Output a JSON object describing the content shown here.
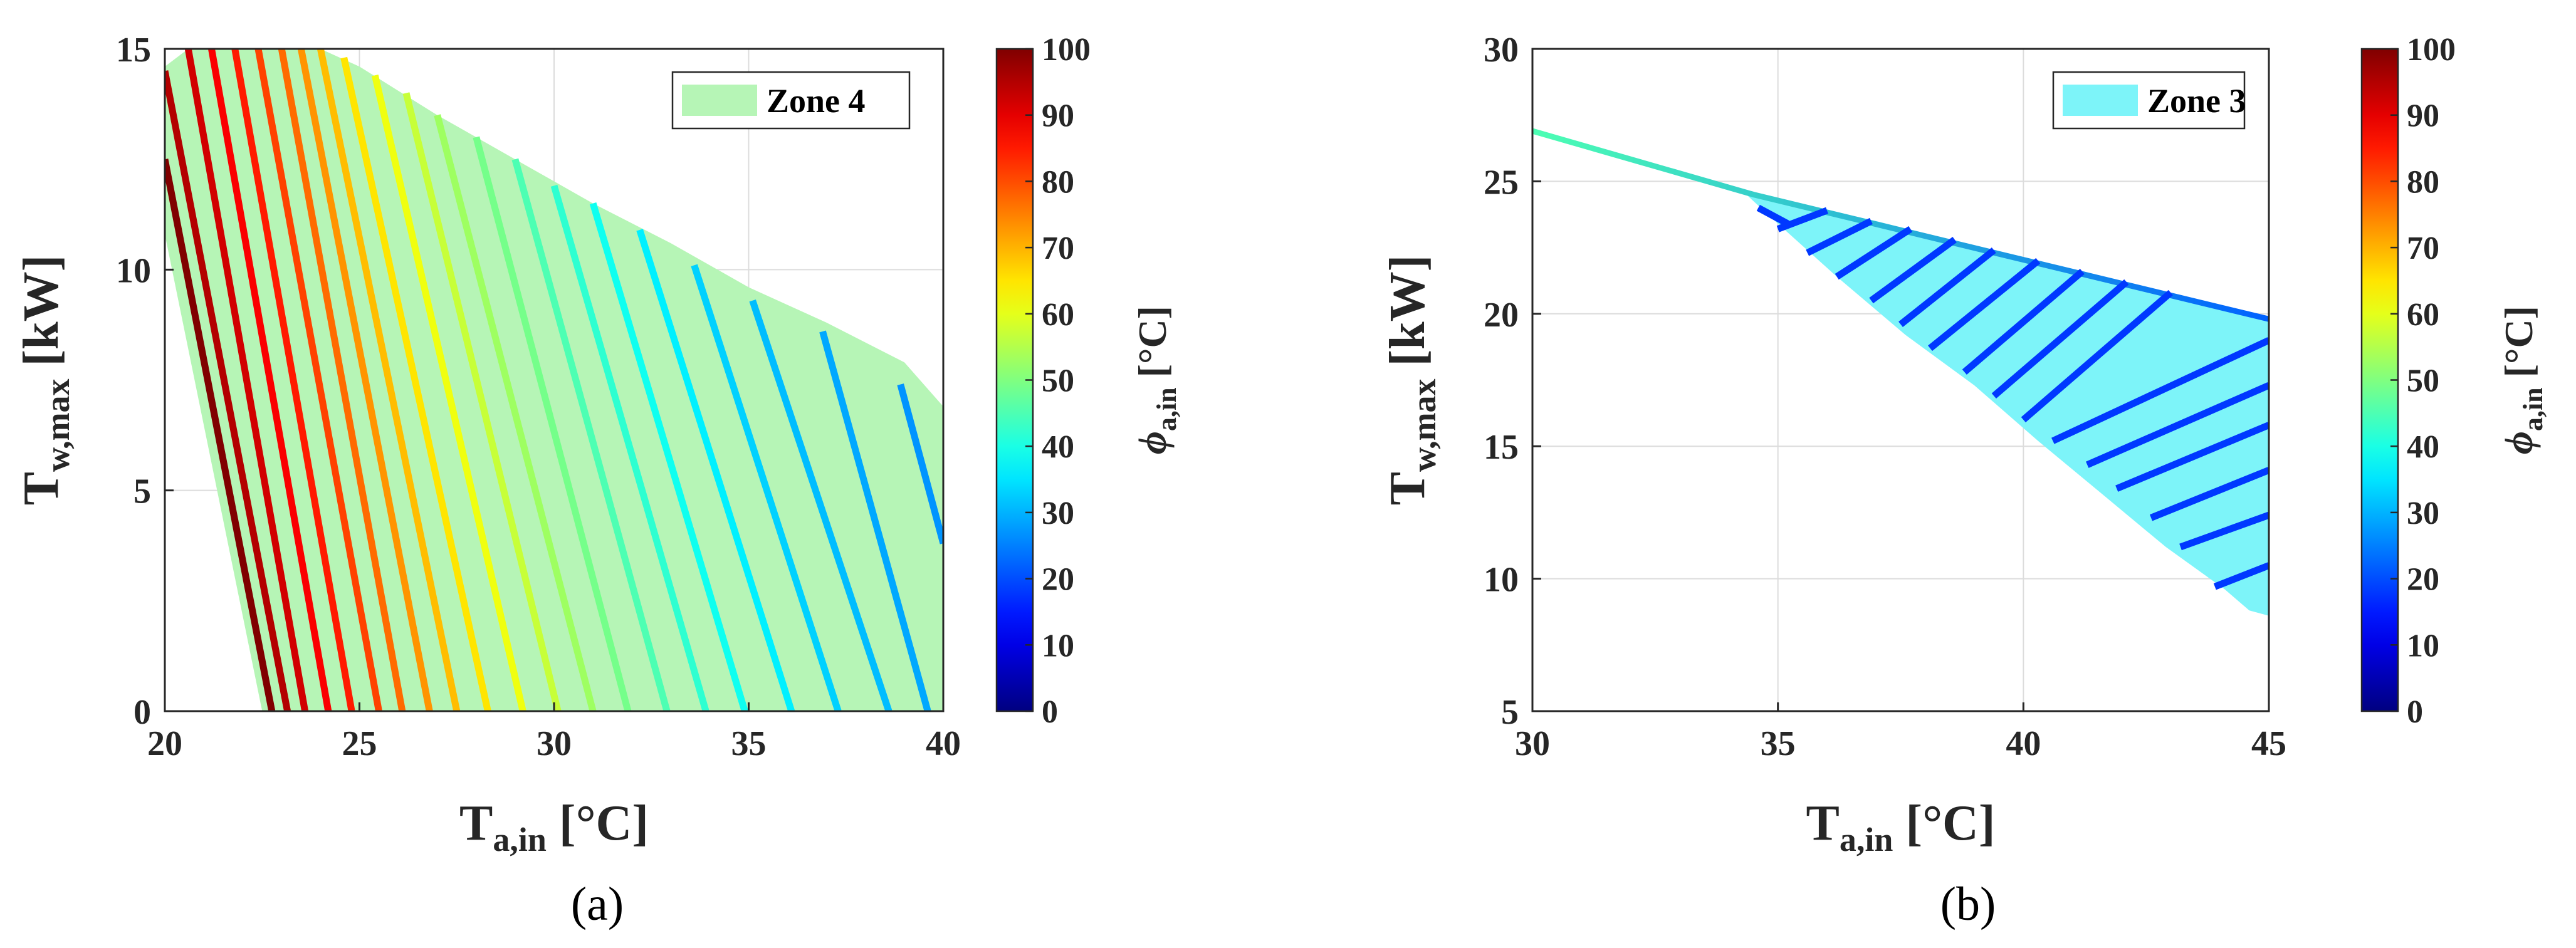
{
  "chart_data": [
    {
      "panel_label": "(a)",
      "type": "area",
      "xlabel": {
        "main": "T",
        "sub": "a,in",
        "unit": " [°C]"
      },
      "ylabel": {
        "main": "T",
        "sub": "w,max",
        "unit": " [kW]"
      },
      "xlim": [
        20,
        40
      ],
      "ylim": [
        0,
        15
      ],
      "xticks": [
        "20",
        "25",
        "30",
        "35",
        "40"
      ],
      "yticks": [
        "0",
        "5",
        "10",
        "15"
      ],
      "grid": true,
      "legend": {
        "label": "Zone 4",
        "position": "top-right",
        "color": "#b6f5b6"
      },
      "zone": {
        "color": "#b6f5b6",
        "polygon": [
          [
            20.0,
            14.6
          ],
          [
            20.6,
            15.0
          ],
          [
            24.0,
            15.0
          ],
          [
            25.0,
            14.6
          ],
          [
            27.0,
            13.5
          ],
          [
            29.0,
            12.5
          ],
          [
            31.0,
            11.5
          ],
          [
            33.0,
            10.6
          ],
          [
            35.0,
            9.6
          ],
          [
            37.0,
            8.8
          ],
          [
            39.0,
            7.9
          ],
          [
            40.0,
            6.9
          ],
          [
            40.0,
            0.0
          ],
          [
            22.5,
            0.0
          ],
          [
            20.0,
            10.8
          ]
        ]
      },
      "colorbar": {
        "label_symbol": "ϕ",
        "label_sub": "a,in",
        "label_unit": " [°C]",
        "ticks": [
          "0",
          "10",
          "20",
          "30",
          "40",
          "50",
          "60",
          "70",
          "80",
          "90",
          "100"
        ],
        "range": [
          0,
          100
        ],
        "colormap": "jet"
      },
      "series": [
        {
          "phi": 100,
          "x": [
            20.0,
            22.75
          ],
          "y": [
            12.5,
            0.0
          ]
        },
        {
          "phi": 95,
          "x": [
            20.0,
            23.15
          ],
          "y": [
            14.5,
            0.0
          ]
        },
        {
          "phi": 92,
          "x": [
            20.6,
            23.6
          ],
          "y": [
            15.0,
            0.0
          ]
        },
        {
          "phi": 88,
          "x": [
            21.2,
            24.2
          ],
          "y": [
            15.0,
            0.0
          ]
        },
        {
          "phi": 85,
          "x": [
            21.8,
            24.8
          ],
          "y": [
            15.0,
            0.0
          ]
        },
        {
          "phi": 81,
          "x": [
            22.4,
            25.5
          ],
          "y": [
            15.0,
            0.0
          ]
        },
        {
          "phi": 77,
          "x": [
            23.0,
            26.1
          ],
          "y": [
            15.0,
            0.0
          ]
        },
        {
          "phi": 73,
          "x": [
            23.5,
            26.8
          ],
          "y": [
            15.0,
            0.0
          ]
        },
        {
          "phi": 69,
          "x": [
            24.0,
            27.5
          ],
          "y": [
            15.0,
            0.0
          ]
        },
        {
          "phi": 65,
          "x": [
            24.6,
            28.3
          ],
          "y": [
            14.8,
            0.0
          ]
        },
        {
          "phi": 61,
          "x": [
            25.4,
            29.2
          ],
          "y": [
            14.4,
            0.0
          ]
        },
        {
          "phi": 57,
          "x": [
            26.2,
            30.1
          ],
          "y": [
            14.0,
            0.0
          ]
        },
        {
          "phi": 53,
          "x": [
            27.0,
            31.0
          ],
          "y": [
            13.5,
            0.0
          ]
        },
        {
          "phi": 49,
          "x": [
            28.0,
            31.9
          ],
          "y": [
            13.0,
            0.0
          ]
        },
        {
          "phi": 45,
          "x": [
            29.0,
            32.9
          ],
          "y": [
            12.5,
            0.0
          ]
        },
        {
          "phi": 42,
          "x": [
            30.0,
            33.9
          ],
          "y": [
            11.9,
            0.0
          ]
        },
        {
          "phi": 39,
          "x": [
            31.0,
            34.9
          ],
          "y": [
            11.5,
            0.0
          ]
        },
        {
          "phi": 36,
          "x": [
            32.2,
            36.1
          ],
          "y": [
            10.9,
            0.0
          ]
        },
        {
          "phi": 33,
          "x": [
            33.6,
            37.3
          ],
          "y": [
            10.1,
            0.0
          ]
        },
        {
          "phi": 31,
          "x": [
            35.1,
            38.6
          ],
          "y": [
            9.3,
            0.0
          ]
        },
        {
          "phi": 29,
          "x": [
            36.9,
            39.6
          ],
          "y": [
            8.6,
            0.0
          ]
        },
        {
          "phi": 27,
          "x": [
            38.9,
            40.0
          ],
          "y": [
            7.4,
            3.8
          ]
        }
      ]
    },
    {
      "panel_label": "(b)",
      "type": "area",
      "xlabel": {
        "main": "T",
        "sub": "a,in",
        "unit": " [°C]"
      },
      "ylabel": {
        "main": "T",
        "sub": "w,max",
        "unit": " [kW]"
      },
      "xlim": [
        30,
        45
      ],
      "ylim": [
        5,
        30
      ],
      "xticks": [
        "30",
        "35",
        "40",
        "45"
      ],
      "yticks": [
        "5",
        "10",
        "15",
        "20",
        "25",
        "30"
      ],
      "grid": true,
      "legend": {
        "label": "Zone 3",
        "position": "top-right",
        "color": "#7df4f9"
      },
      "zone": {
        "color": "#7df4f9",
        "polygon": [
          [
            34.3,
            24.6
          ],
          [
            37.0,
            23.5
          ],
          [
            40.0,
            22.1
          ],
          [
            42.0,
            21.2
          ],
          [
            45.0,
            19.8
          ],
          [
            45.0,
            8.6
          ],
          [
            44.6,
            8.8
          ],
          [
            44.1,
            9.6
          ],
          [
            42.9,
            11.2
          ],
          [
            41.6,
            13.2
          ],
          [
            40.3,
            15.2
          ],
          [
            39.0,
            17.3
          ],
          [
            37.6,
            19.2
          ],
          [
            36.2,
            21.4
          ],
          [
            35.0,
            23.4
          ],
          [
            34.3,
            24.6
          ]
        ]
      },
      "boundary": {
        "phi_start": 45,
        "phi_end": 22,
        "x": [
          30.0,
          34.5,
          45.0
        ],
        "y": [
          26.9,
          24.5,
          19.8
        ]
      },
      "colorbar": {
        "label_symbol": "ϕ",
        "label_sub": "a,in",
        "label_unit": " [°C]",
        "ticks": [
          "0",
          "10",
          "20",
          "30",
          "40",
          "50",
          "60",
          "70",
          "80",
          "90",
          "100"
        ],
        "range": [
          0,
          100
        ],
        "colormap": "jet"
      },
      "series": [
        {
          "phi": 18,
          "x": [
            34.6,
            35.2
          ],
          "y": [
            24.0,
            23.4
          ]
        },
        {
          "phi": 18,
          "x": [
            35.0,
            36.0
          ],
          "y": [
            23.2,
            23.9
          ]
        },
        {
          "phi": 18,
          "x": [
            35.6,
            36.9
          ],
          "y": [
            22.3,
            23.5
          ]
        },
        {
          "phi": 18,
          "x": [
            36.2,
            37.7
          ],
          "y": [
            21.4,
            23.2
          ]
        },
        {
          "phi": 18,
          "x": [
            36.9,
            38.6
          ],
          "y": [
            20.5,
            22.8
          ]
        },
        {
          "phi": 18,
          "x": [
            37.5,
            39.4
          ],
          "y": [
            19.6,
            22.4
          ]
        },
        {
          "phi": 18,
          "x": [
            38.1,
            40.3
          ],
          "y": [
            18.7,
            22.0
          ]
        },
        {
          "phi": 18,
          "x": [
            38.8,
            41.2
          ],
          "y": [
            17.8,
            21.6
          ]
        },
        {
          "phi": 18,
          "x": [
            39.4,
            42.1
          ],
          "y": [
            16.9,
            21.2
          ]
        },
        {
          "phi": 18,
          "x": [
            40.0,
            43.0
          ],
          "y": [
            16.0,
            20.8
          ]
        },
        {
          "phi": 18,
          "x": [
            40.6,
            45.0
          ],
          "y": [
            15.2,
            19.0
          ]
        },
        {
          "phi": 18,
          "x": [
            41.3,
            45.0
          ],
          "y": [
            14.3,
            17.3
          ]
        },
        {
          "phi": 18,
          "x": [
            41.9,
            45.0
          ],
          "y": [
            13.4,
            15.8
          ]
        },
        {
          "phi": 18,
          "x": [
            42.6,
            45.0
          ],
          "y": [
            12.3,
            14.1
          ]
        },
        {
          "phi": 18,
          "x": [
            43.2,
            45.0
          ],
          "y": [
            11.2,
            12.4
          ]
        },
        {
          "phi": 18,
          "x": [
            43.9,
            45.0
          ],
          "y": [
            9.7,
            10.5
          ]
        }
      ]
    }
  ]
}
